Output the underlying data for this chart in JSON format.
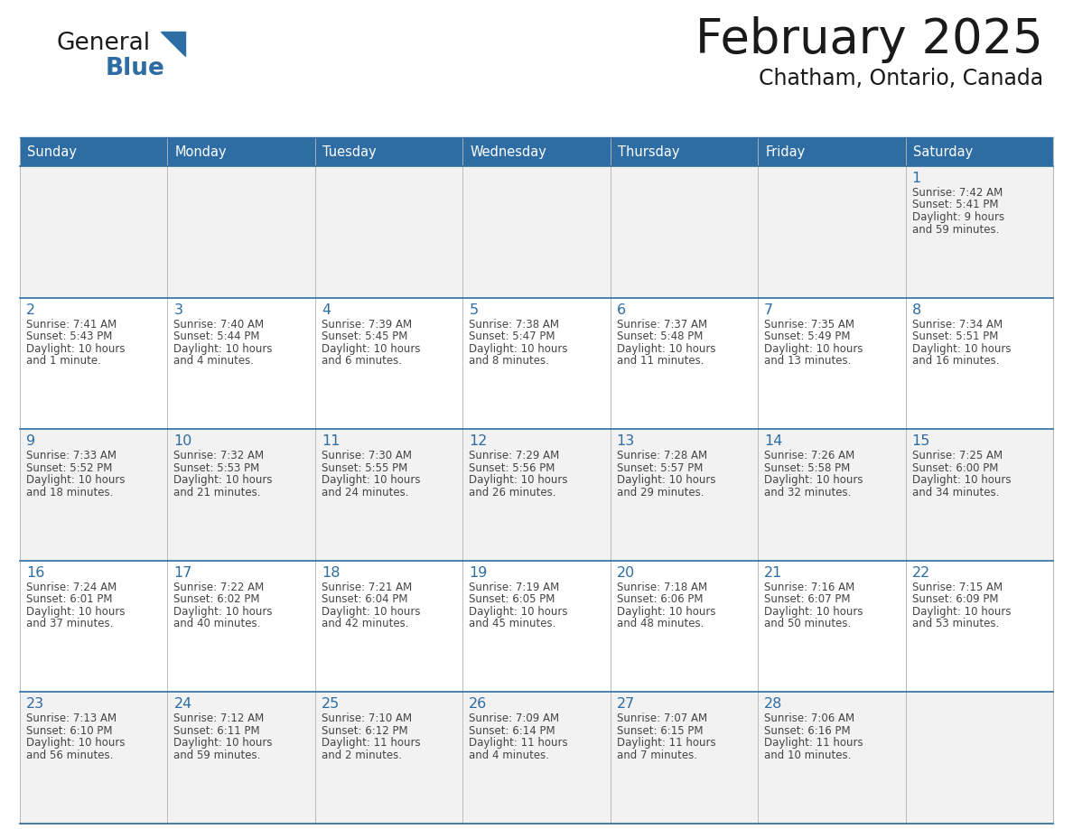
{
  "title": "February 2025",
  "subtitle": "Chatham, Ontario, Canada",
  "header_bg": "#2E6DA4",
  "header_text": "#FFFFFF",
  "cell_bg_odd": "#F2F2F2",
  "cell_bg_even": "#FFFFFF",
  "day_number_color": "#2E6DA4",
  "text_color": "#444444",
  "days_of_week": [
    "Sunday",
    "Monday",
    "Tuesday",
    "Wednesday",
    "Thursday",
    "Friday",
    "Saturday"
  ],
  "calendar_data": [
    [
      null,
      null,
      null,
      null,
      null,
      null,
      {
        "day": "1",
        "sunrise": "7:42 AM",
        "sunset": "5:41 PM",
        "daylight_l1": "9 hours",
        "daylight_l2": "and 59 minutes."
      }
    ],
    [
      {
        "day": "2",
        "sunrise": "7:41 AM",
        "sunset": "5:43 PM",
        "daylight_l1": "10 hours",
        "daylight_l2": "and 1 minute."
      },
      {
        "day": "3",
        "sunrise": "7:40 AM",
        "sunset": "5:44 PM",
        "daylight_l1": "10 hours",
        "daylight_l2": "and 4 minutes."
      },
      {
        "day": "4",
        "sunrise": "7:39 AM",
        "sunset": "5:45 PM",
        "daylight_l1": "10 hours",
        "daylight_l2": "and 6 minutes."
      },
      {
        "day": "5",
        "sunrise": "7:38 AM",
        "sunset": "5:47 PM",
        "daylight_l1": "10 hours",
        "daylight_l2": "and 8 minutes."
      },
      {
        "day": "6",
        "sunrise": "7:37 AM",
        "sunset": "5:48 PM",
        "daylight_l1": "10 hours",
        "daylight_l2": "and 11 minutes."
      },
      {
        "day": "7",
        "sunrise": "7:35 AM",
        "sunset": "5:49 PM",
        "daylight_l1": "10 hours",
        "daylight_l2": "and 13 minutes."
      },
      {
        "day": "8",
        "sunrise": "7:34 AM",
        "sunset": "5:51 PM",
        "daylight_l1": "10 hours",
        "daylight_l2": "and 16 minutes."
      }
    ],
    [
      {
        "day": "9",
        "sunrise": "7:33 AM",
        "sunset": "5:52 PM",
        "daylight_l1": "10 hours",
        "daylight_l2": "and 18 minutes."
      },
      {
        "day": "10",
        "sunrise": "7:32 AM",
        "sunset": "5:53 PM",
        "daylight_l1": "10 hours",
        "daylight_l2": "and 21 minutes."
      },
      {
        "day": "11",
        "sunrise": "7:30 AM",
        "sunset": "5:55 PM",
        "daylight_l1": "10 hours",
        "daylight_l2": "and 24 minutes."
      },
      {
        "day": "12",
        "sunrise": "7:29 AM",
        "sunset": "5:56 PM",
        "daylight_l1": "10 hours",
        "daylight_l2": "and 26 minutes."
      },
      {
        "day": "13",
        "sunrise": "7:28 AM",
        "sunset": "5:57 PM",
        "daylight_l1": "10 hours",
        "daylight_l2": "and 29 minutes."
      },
      {
        "day": "14",
        "sunrise": "7:26 AM",
        "sunset": "5:58 PM",
        "daylight_l1": "10 hours",
        "daylight_l2": "and 32 minutes."
      },
      {
        "day": "15",
        "sunrise": "7:25 AM",
        "sunset": "6:00 PM",
        "daylight_l1": "10 hours",
        "daylight_l2": "and 34 minutes."
      }
    ],
    [
      {
        "day": "16",
        "sunrise": "7:24 AM",
        "sunset": "6:01 PM",
        "daylight_l1": "10 hours",
        "daylight_l2": "and 37 minutes."
      },
      {
        "day": "17",
        "sunrise": "7:22 AM",
        "sunset": "6:02 PM",
        "daylight_l1": "10 hours",
        "daylight_l2": "and 40 minutes."
      },
      {
        "day": "18",
        "sunrise": "7:21 AM",
        "sunset": "6:04 PM",
        "daylight_l1": "10 hours",
        "daylight_l2": "and 42 minutes."
      },
      {
        "day": "19",
        "sunrise": "7:19 AM",
        "sunset": "6:05 PM",
        "daylight_l1": "10 hours",
        "daylight_l2": "and 45 minutes."
      },
      {
        "day": "20",
        "sunrise": "7:18 AM",
        "sunset": "6:06 PM",
        "daylight_l1": "10 hours",
        "daylight_l2": "and 48 minutes."
      },
      {
        "day": "21",
        "sunrise": "7:16 AM",
        "sunset": "6:07 PM",
        "daylight_l1": "10 hours",
        "daylight_l2": "and 50 minutes."
      },
      {
        "day": "22",
        "sunrise": "7:15 AM",
        "sunset": "6:09 PM",
        "daylight_l1": "10 hours",
        "daylight_l2": "and 53 minutes."
      }
    ],
    [
      {
        "day": "23",
        "sunrise": "7:13 AM",
        "sunset": "6:10 PM",
        "daylight_l1": "10 hours",
        "daylight_l2": "and 56 minutes."
      },
      {
        "day": "24",
        "sunrise": "7:12 AM",
        "sunset": "6:11 PM",
        "daylight_l1": "10 hours",
        "daylight_l2": "and 59 minutes."
      },
      {
        "day": "25",
        "sunrise": "7:10 AM",
        "sunset": "6:12 PM",
        "daylight_l1": "11 hours",
        "daylight_l2": "and 2 minutes."
      },
      {
        "day": "26",
        "sunrise": "7:09 AM",
        "sunset": "6:14 PM",
        "daylight_l1": "11 hours",
        "daylight_l2": "and 4 minutes."
      },
      {
        "day": "27",
        "sunrise": "7:07 AM",
        "sunset": "6:15 PM",
        "daylight_l1": "11 hours",
        "daylight_l2": "and 7 minutes."
      },
      {
        "day": "28",
        "sunrise": "7:06 AM",
        "sunset": "6:16 PM",
        "daylight_l1": "11 hours",
        "daylight_l2": "and 10 minutes."
      },
      null
    ]
  ],
  "logo_general_color": "#1a1a1a",
  "logo_blue_color": "#2E6DA4",
  "logo_triangle_color": "#2E6DA4"
}
